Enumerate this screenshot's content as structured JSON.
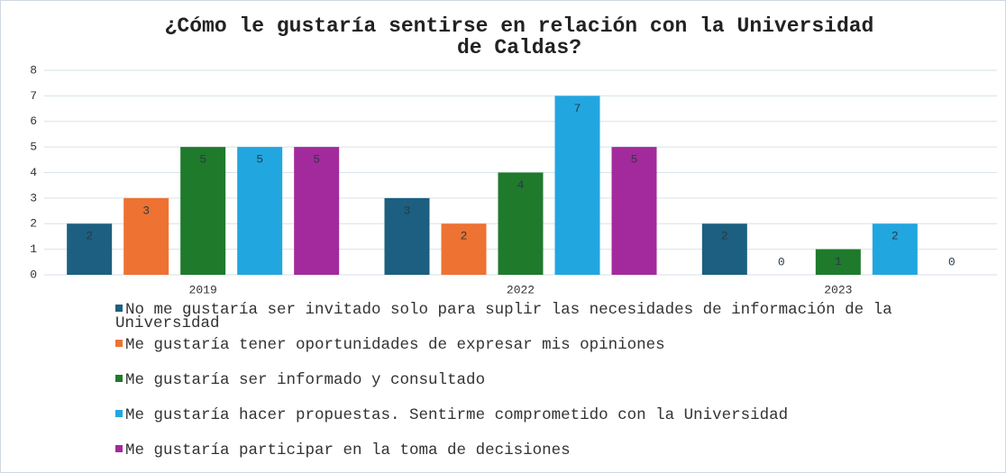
{
  "chart_data": {
    "type": "bar",
    "title": "¿Cómo le gustaría sentirse en relación con la Universidad de Caldas?",
    "categories": [
      "2019",
      "2022",
      "2023"
    ],
    "series": [
      {
        "name": "No me gustaría ser invitado solo para suplir las necesidades de información de la Universidad",
        "color": "#1c5f80",
        "values": [
          2,
          3,
          2
        ]
      },
      {
        "name": "Me gustaría tener oportunidades de expresar mis opiniones",
        "color": "#ee7232",
        "values": [
          3,
          2,
          0
        ]
      },
      {
        "name": "Me gustaría ser informado y consultado",
        "color": "#1f7a2c",
        "values": [
          5,
          4,
          1
        ]
      },
      {
        "name": "Me gustaría hacer propuestas. Sentirme comprometido con la Universidad",
        "color": "#22a6e0",
        "values": [
          5,
          7,
          2
        ]
      },
      {
        "name": "Me gustaría participar en la toma de decisiones",
        "color": "#a32a9c",
        "values": [
          5,
          5,
          0
        ]
      }
    ],
    "ylim": [
      0,
      8
    ],
    "yticks": [
      0,
      1,
      2,
      3,
      4,
      5,
      6,
      7,
      8
    ],
    "grid": true,
    "legend": "bottom"
  }
}
